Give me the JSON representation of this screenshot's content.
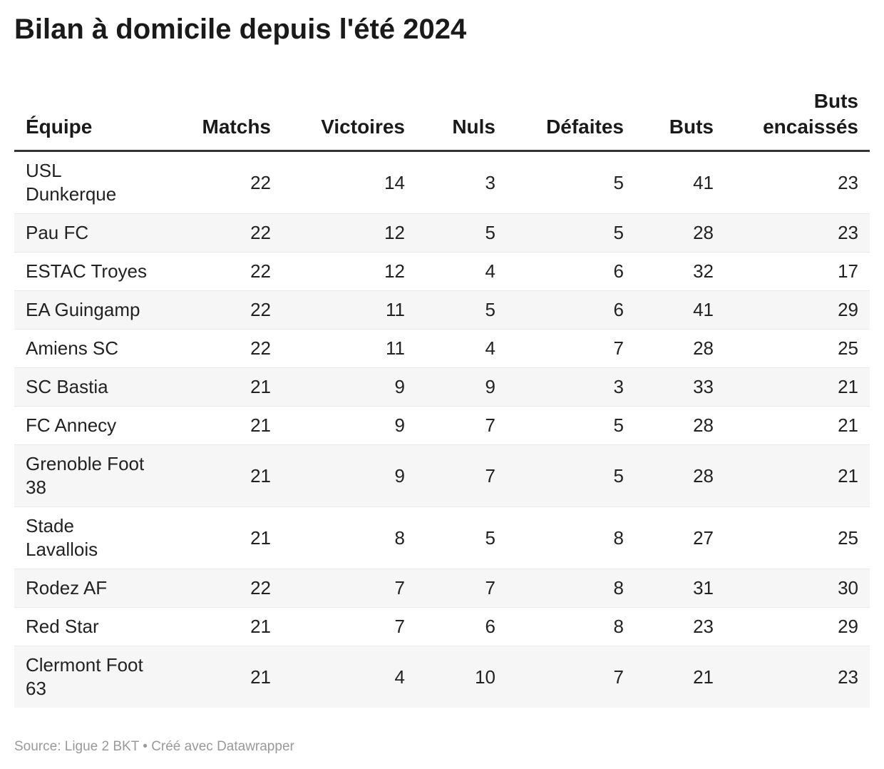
{
  "chart_data": {
    "type": "table",
    "title": "Bilan à domicile depuis l'été 2024",
    "columns": [
      "Équipe",
      "Matchs",
      "Victoires",
      "Nuls",
      "Défaites",
      "Buts",
      "Buts encaissés"
    ],
    "rows": [
      [
        "USL Dunkerque",
        22,
        14,
        3,
        5,
        41,
        23
      ],
      [
        "Pau FC",
        22,
        12,
        5,
        5,
        28,
        23
      ],
      [
        "ESTAC Troyes",
        22,
        12,
        4,
        6,
        32,
        17
      ],
      [
        "EA Guingamp",
        22,
        11,
        5,
        6,
        41,
        29
      ],
      [
        "Amiens SC",
        22,
        11,
        4,
        7,
        28,
        25
      ],
      [
        "SC Bastia",
        21,
        9,
        9,
        3,
        33,
        21
      ],
      [
        "FC Annecy",
        21,
        9,
        7,
        5,
        28,
        21
      ],
      [
        "Grenoble Foot 38",
        21,
        9,
        7,
        5,
        28,
        21
      ],
      [
        "Stade Lavallois",
        21,
        8,
        5,
        8,
        27,
        25
      ],
      [
        "Rodez AF",
        22,
        7,
        7,
        8,
        31,
        30
      ],
      [
        "Red Star",
        21,
        7,
        6,
        8,
        23,
        29
      ],
      [
        "Clermont Foot 63",
        21,
        4,
        10,
        7,
        21,
        23
      ]
    ],
    "source": "Ligue 2 BKT",
    "layout_hints": {
      "zebra_striping": true,
      "first_column_align": "left",
      "numeric_columns_align": "right"
    }
  },
  "display": {
    "wrapped_team_names": {
      "USL Dunkerque": "USL\nDunkerque",
      "Grenoble Foot 38": "Grenoble Foot\n38",
      "Stade Lavallois": "Stade\nLavallois",
      "Clermont Foot 63": "Clermont Foot\n63"
    }
  },
  "footer": {
    "text": "Source: Ligue 2 BKT • Créé avec Datawrapper"
  },
  "colors": {
    "title": "#1a1a1a",
    "header_text": "#1a1a1a",
    "body_text": "#222222",
    "stripe": "#f6f6f6",
    "row_border": "#e9e9e9",
    "header_border": "#333333",
    "footer_text": "#999999",
    "page_background": "#ffffff"
  }
}
